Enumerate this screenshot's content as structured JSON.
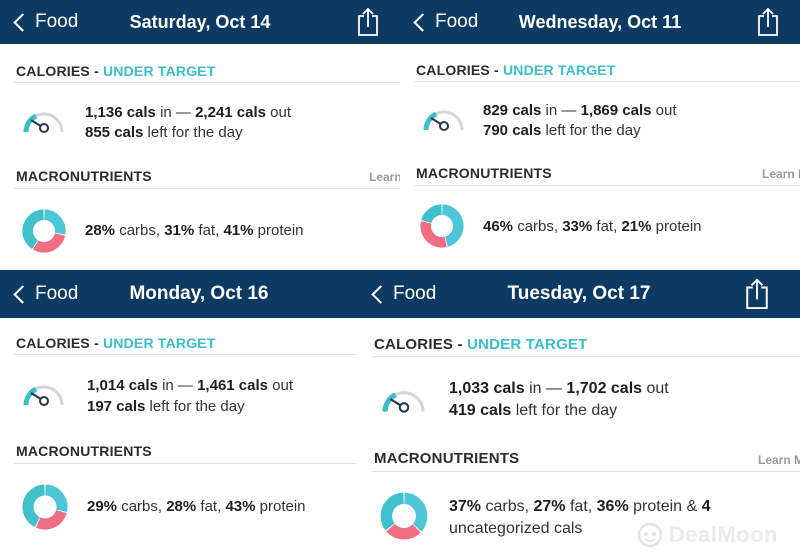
{
  "colors": {
    "header": "#0c3a63",
    "accent": "#3bbec9",
    "carbs": "#4cc6d8",
    "fat": "#ef6e81",
    "protein": "#3fc0cb"
  },
  "panels": [
    {
      "back_label": "Food",
      "date": "Saturday, Oct 14",
      "calories_label": "CALORIES",
      "sep": " - ",
      "status": "UNDER TARGET",
      "in_value": "1,136 cals",
      "in_word": " in — ",
      "out_value": "2,241 cals",
      "out_word": " out",
      "left_value": "855 cals",
      "left_text": " left for the day",
      "macro_label": "MACRONUTRIENTS",
      "learn": "Learn",
      "carbs_value": "28%",
      "carbs_word": " carbs, ",
      "fat_value": "31%",
      "fat_word": " fat, ",
      "protein_value": "41%",
      "protein_word": " protein",
      "carbs_pct": 28,
      "fat_pct": 31,
      "protein_pct": 41
    },
    {
      "back_label": "Food",
      "date": "Wednesday, Oct 11",
      "calories_label": "CALORIES",
      "sep": " - ",
      "status": "UNDER TARGET",
      "in_value": "829 cals",
      "in_word": " in — ",
      "out_value": "1,869 cals",
      "out_word": " out",
      "left_value": "790 cals",
      "left_text": " left for the day",
      "macro_label": "MACRONUTRIENTS",
      "learn": "Learn M",
      "carbs_value": "46%",
      "carbs_word": " carbs, ",
      "fat_value": "33%",
      "fat_word": " fat, ",
      "protein_value": "21%",
      "protein_word": " protein",
      "carbs_pct": 46,
      "fat_pct": 33,
      "protein_pct": 21
    },
    {
      "back_label": "Food",
      "date": "Monday, Oct 16",
      "calories_label": "CALORIES",
      "sep": " - ",
      "status": "UNDER TARGET",
      "in_value": "1,014 cals",
      "in_word": " in — ",
      "out_value": "1,461 cals",
      "out_word": " out",
      "left_value": "197 cals",
      "left_text": " left for the day",
      "macro_label": "MACRONUTRIENTS",
      "carbs_value": "29%",
      "carbs_word": " carbs, ",
      "fat_value": "28%",
      "fat_word": " fat, ",
      "protein_value": "43%",
      "protein_word": " protein",
      "carbs_pct": 29,
      "fat_pct": 28,
      "protein_pct": 43
    },
    {
      "back_label": "Food",
      "date": "Tuesday, Oct 17",
      "calories_label": "CALORIES",
      "sep": " - ",
      "status": "UNDER TARGET",
      "in_value": "1,033 cals",
      "in_word": " in — ",
      "out_value": "1,702 cals",
      "out_word": " out",
      "left_value": "419 cals",
      "left_text": " left for the day",
      "macro_label": "MACRONUTRIENTS",
      "learn": "Learn M",
      "carbs_value": "37%",
      "carbs_word": " carbs, ",
      "fat_value": "27%",
      "fat_word": " fat, ",
      "protein_value": "36%",
      "protein_word": " protein & ",
      "uncat_value": "4",
      "uncat_text": "uncategorized cals",
      "carbs_pct": 37,
      "fat_pct": 27,
      "protein_pct": 36
    }
  ],
  "watermark": {
    "text": "DealMoon",
    "icon": "dealmoon-logo-icon"
  }
}
